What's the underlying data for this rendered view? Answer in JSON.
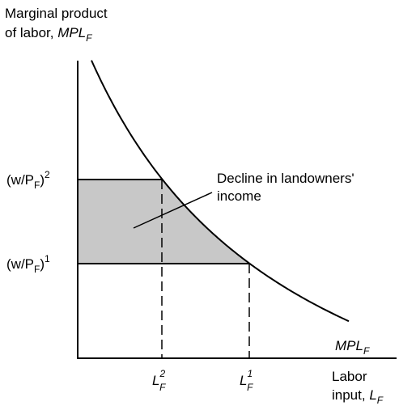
{
  "y_axis_label": {
    "line1": "Marginal product",
    "line2": "of labor, ",
    "var": "MPL",
    "sub": "F"
  },
  "wage_levels": [
    {
      "open": "(w/P",
      "sub": "F",
      "close": ")",
      "sup": "2"
    },
    {
      "open": "(w/P",
      "sub": "F",
      "close": ")",
      "sup": "1"
    }
  ],
  "annotation": {
    "line1": "Decline in landowners'",
    "line2": "income"
  },
  "curve_label": {
    "var": "MPL",
    "sub": "F"
  },
  "labor_levels": [
    {
      "var": "L",
      "sub": "F",
      "sup": "2"
    },
    {
      "var": "L",
      "sub": "F",
      "sup": "1"
    }
  ],
  "x_axis_label": {
    "line1": "Labor",
    "line2": "input, ",
    "var": "L",
    "sub": "F"
  }
}
